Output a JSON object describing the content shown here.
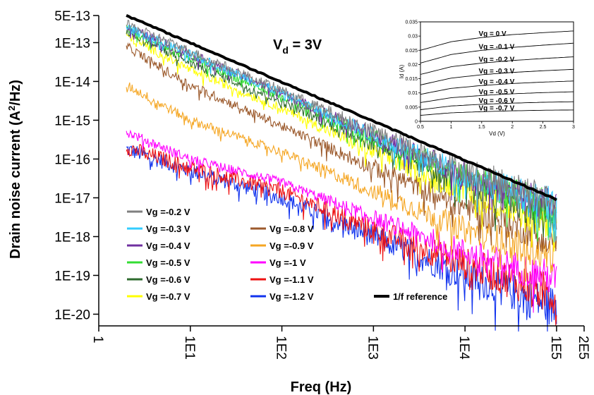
{
  "chart_data": {
    "type": "line",
    "title": "",
    "annotation": {
      "main": "V",
      "sub": "d",
      "rest": " = 3V"
    },
    "xlabel": "Freq (Hz)",
    "ylabel": {
      "pre": "Drain noise current (A",
      "sup": "2",
      "post": "/Hz)"
    },
    "xscale": "log",
    "yscale": "log",
    "xlim": [
      1,
      200000
    ],
    "ylim": [
      5e-21,
      5e-13
    ],
    "x_ticks": [
      {
        "value": 1,
        "label": "1"
      },
      {
        "value": 10,
        "label": "1E1"
      },
      {
        "value": 100,
        "label": "1E2"
      },
      {
        "value": 1000,
        "label": "1E3"
      },
      {
        "value": 10000,
        "label": "1E4"
      },
      {
        "value": 100000,
        "label": "1E5"
      },
      {
        "value": 200000,
        "label": "2E5"
      }
    ],
    "y_ticks": [
      {
        "value": 5e-13,
        "label": "5E-13"
      },
      {
        "value": 1e-13,
        "label": "1E-13"
      },
      {
        "value": 1e-14,
        "label": "1E-14"
      },
      {
        "value": 1e-15,
        "label": "1E-15"
      },
      {
        "value": 1e-16,
        "label": "1E-16"
      },
      {
        "value": 1e-17,
        "label": "1E-17"
      },
      {
        "value": 1e-18,
        "label": "1E-18"
      },
      {
        "value": 1e-19,
        "label": "1E-19"
      },
      {
        "value": 1e-20,
        "label": "1E-20"
      }
    ],
    "grid": false,
    "legend_position": "bottom-left",
    "series": [
      {
        "name": "Vg =-0.2 V",
        "color": "#7f7f7f",
        "x": [
          2,
          10,
          100,
          1000,
          10000,
          100000
        ],
        "y": [
          3e-13,
          6e-14,
          6e-15,
          5e-16,
          5e-17,
          8e-18
        ]
      },
      {
        "name": "Vg =-0.3 V",
        "color": "#33ccff",
        "x": [
          2,
          10,
          100,
          1000,
          10000,
          100000
        ],
        "y": [
          2.5e-13,
          5e-14,
          5e-15,
          4e-16,
          4e-17,
          6e-18
        ]
      },
      {
        "name": "Vg =-0.4 V",
        "color": "#7030a0",
        "x": [
          2,
          10,
          100,
          1000,
          10000,
          100000
        ],
        "y": [
          2.5e-13,
          5e-14,
          5e-15,
          4e-16,
          4e-17,
          6e-18
        ]
      },
      {
        "name": "Vg =-0.5 V",
        "color": "#33dd33",
        "x": [
          2,
          10,
          100,
          1000,
          10000,
          100000
        ],
        "y": [
          2.2e-13,
          4e-14,
          4e-15,
          3.5e-16,
          3.5e-17,
          5e-18
        ]
      },
      {
        "name": "Vg =-0.6 V",
        "color": "#2e6b2e",
        "x": [
          2,
          10,
          100,
          1000,
          10000,
          100000
        ],
        "y": [
          2e-13,
          3e-14,
          3e-15,
          2.5e-16,
          2.5e-17,
          3e-18
        ]
      },
      {
        "name": "Vg =-0.7 V",
        "color": "#ffff00",
        "x": [
          2,
          10,
          100,
          1000,
          10000,
          100000
        ],
        "y": [
          1.5e-13,
          2e-14,
          2e-15,
          1.5e-16,
          1.5e-17,
          2e-18
        ]
      },
      {
        "name": "Vg =-0.8 V",
        "color": "#9c5a2c",
        "x": [
          2,
          10,
          100,
          1000,
          10000,
          100000
        ],
        "y": [
          8e-14,
          8e-15,
          7e-16,
          6e-17,
          6e-18,
          8e-19
        ]
      },
      {
        "name": "Vg =-0.9 V",
        "color": "#f5a623",
        "x": [
          2,
          10,
          100,
          1000,
          10000,
          100000
        ],
        "y": [
          8e-15,
          1e-15,
          1.5e-16,
          1.5e-17,
          1.5e-18,
          3e-19
        ]
      },
      {
        "name": "Vg =-1 V",
        "color": "#ff00ff",
        "x": [
          2,
          10,
          100,
          1000,
          10000,
          100000
        ],
        "y": [
          5e-16,
          1e-16,
          2.5e-17,
          3e-18,
          4e-19,
          8e-20
        ]
      },
      {
        "name": "Vg =-1.1 V",
        "color": "#ee1111",
        "x": [
          2,
          10,
          100,
          1000,
          10000,
          100000
        ],
        "y": [
          2e-16,
          6e-17,
          1.5e-17,
          1.5e-18,
          2e-19,
          3e-20
        ]
      },
      {
        "name": "Vg =-1.2 V",
        "color": "#1133ee",
        "x": [
          2,
          10,
          100,
          1000,
          10000,
          100000
        ],
        "y": [
          1.8e-16,
          5e-17,
          1e-17,
          1e-18,
          1e-19,
          1.5e-20
        ]
      },
      {
        "name": "1/f reference",
        "color": "#000000",
        "x": [
          2,
          100000
        ],
        "y": [
          5e-13,
          9e-18
        ]
      }
    ],
    "legend_columns": [
      [
        "Vg =-0.2 V",
        "Vg =-0.3 V",
        "Vg =-0.4 V",
        "Vg =-0.5 V",
        "Vg =-0.6 V",
        "Vg =-0.7 V"
      ],
      [
        "",
        "Vg =-0.8 V",
        "Vg =-0.9 V",
        "Vg =-1 V",
        "Vg =-1.1 V",
        "Vg =-1.2 V"
      ],
      [
        "",
        "",
        "",
        "",
        "",
        "1/f reference"
      ]
    ],
    "inset": {
      "type": "line",
      "xlabel": "Vd (V)",
      "ylabel": "Id (A)",
      "xlim": [
        0.5,
        3
      ],
      "ylim": [
        0,
        0.035
      ],
      "x_ticks": [
        "0.5",
        "1",
        "1.5",
        "2",
        "2.5",
        "3"
      ],
      "y_ticks": [
        "0",
        "0.005",
        "0.01",
        "0.015",
        "0.02",
        "0.025",
        "0.03",
        "0.035"
      ],
      "series": [
        {
          "name": "Vg = 0 V",
          "vd": [
            0.5,
            1,
            1.5,
            2,
            2.5,
            3
          ],
          "id": [
            0.025,
            0.028,
            0.0295,
            0.0305,
            0.0312,
            0.0318
          ]
        },
        {
          "name": "Vg = -0.1 V",
          "vd": [
            0.5,
            1,
            1.5,
            2,
            2.5,
            3
          ],
          "id": [
            0.0205,
            0.0235,
            0.025,
            0.026,
            0.0268,
            0.0275
          ]
        },
        {
          "name": "Vg = -0.2 V",
          "vd": [
            0.5,
            1,
            1.5,
            2,
            2.5,
            3
          ],
          "id": [
            0.0165,
            0.0192,
            0.0205,
            0.0214,
            0.0221,
            0.0227
          ]
        },
        {
          "name": "Vg = -0.3 V",
          "vd": [
            0.5,
            1,
            1.5,
            2,
            2.5,
            3
          ],
          "id": [
            0.0128,
            0.0152,
            0.0164,
            0.0172,
            0.0178,
            0.0183
          ]
        },
        {
          "name": "Vg = -0.4 V",
          "vd": [
            0.5,
            1,
            1.5,
            2,
            2.5,
            3
          ],
          "id": [
            0.0095,
            0.0116,
            0.0126,
            0.0133,
            0.0138,
            0.0142
          ]
        },
        {
          "name": "Vg = -0.5 V",
          "vd": [
            0.5,
            1,
            1.5,
            2,
            2.5,
            3
          ],
          "id": [
            0.0066,
            0.0083,
            0.0091,
            0.0097,
            0.0101,
            0.0104
          ]
        },
        {
          "name": "Vg = -0.6 V",
          "vd": [
            0.5,
            1,
            1.5,
            2,
            2.5,
            3
          ],
          "id": [
            0.0041,
            0.0054,
            0.006,
            0.0064,
            0.0067,
            0.0069
          ]
        },
        {
          "name": "Vg = -0.7 V",
          "vd": [
            0.5,
            1,
            1.5,
            2,
            2.5,
            3
          ],
          "id": [
            0.0021,
            0.003,
            0.0034,
            0.0037,
            0.0039,
            0.004
          ]
        }
      ]
    }
  }
}
